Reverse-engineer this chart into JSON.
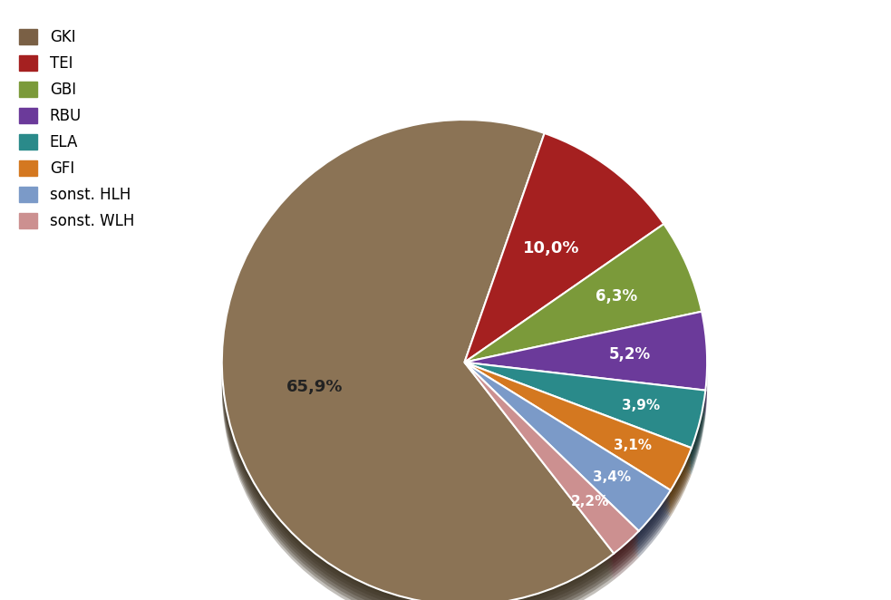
{
  "labels": [
    "GKI",
    "TEI",
    "GBI",
    "RBU",
    "ELA",
    "GFI",
    "sonst. HLH",
    "sonst. WLH"
  ],
  "values": [
    65.9,
    10.0,
    6.3,
    5.2,
    3.9,
    3.1,
    3.4,
    2.2
  ],
  "colors": [
    "#8B7355",
    "#A52020",
    "#7B9A3A",
    "#6B3A9A",
    "#2A8A8A",
    "#D47820",
    "#7B9AC8",
    "#CC9090"
  ],
  "pct_labels": [
    "65,9%",
    "10,0%",
    "6,3%",
    "5,2%",
    "3,9%",
    "3,1%",
    "3,4%",
    "2,2%"
  ],
  "legend_colors": [
    "#7A6045",
    "#A52020",
    "#7B9A3A",
    "#6B3A9A",
    "#2A8A8A",
    "#D47820",
    "#7B9AC8",
    "#CC9090"
  ],
  "bg_color": "#FFFFFF",
  "label_fontsize": 13,
  "legend_fontsize": 12,
  "startangle": 308
}
